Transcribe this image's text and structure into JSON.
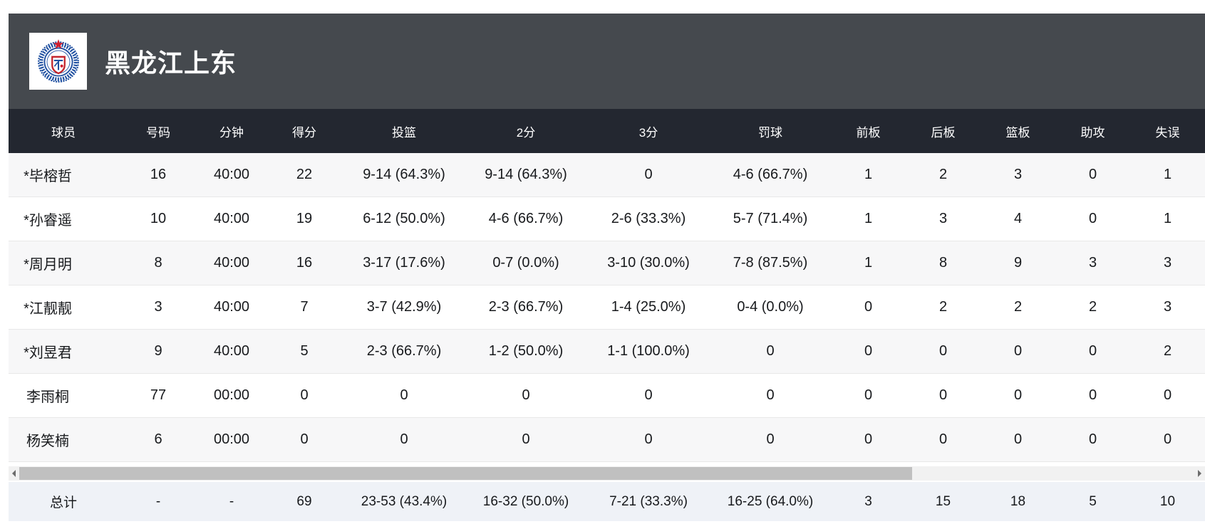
{
  "team": {
    "name": "黑龙江上东",
    "logo": "team-crest-blue-ring-red-shield",
    "colors": {
      "bar": "#45494e",
      "header_row": "#232730",
      "row_alt": "#f7f7f8",
      "total_row": "#eff2f7",
      "logo_blue": "#1e4fa0",
      "logo_red": "#cf2030"
    }
  },
  "table": {
    "columns": [
      "球员",
      "号码",
      "分钟",
      "得分",
      "投篮",
      "2分",
      "3分",
      "罚球",
      "前板",
      "后板",
      "篮板",
      "助攻",
      "失误"
    ],
    "rows": [
      [
        "*毕榕哲",
        "16",
        "40:00",
        "22",
        "9-14 (64.3%)",
        "9-14 (64.3%)",
        "0",
        "4-6 (66.7%)",
        "1",
        "2",
        "3",
        "0",
        "1"
      ],
      [
        "*孙睿遥",
        "10",
        "40:00",
        "19",
        "6-12 (50.0%)",
        "4-6 (66.7%)",
        "2-6 (33.3%)",
        "5-7 (71.4%)",
        "1",
        "3",
        "4",
        "0",
        "1"
      ],
      [
        "*周月明",
        "8",
        "40:00",
        "16",
        "3-17 (17.6%)",
        "0-7 (0.0%)",
        "3-10 (30.0%)",
        "7-8 (87.5%)",
        "1",
        "8",
        "9",
        "3",
        "3"
      ],
      [
        "*江靓靓",
        "3",
        "40:00",
        "7",
        "3-7 (42.9%)",
        "2-3 (66.7%)",
        "1-4 (25.0%)",
        "0-4 (0.0%)",
        "0",
        "2",
        "2",
        "2",
        "3"
      ],
      [
        "*刘昱君",
        "9",
        "40:00",
        "5",
        "2-3 (66.7%)",
        "1-2 (50.0%)",
        "1-1 (100.0%)",
        "0",
        "0",
        "0",
        "0",
        "0",
        "2"
      ],
      [
        "李雨桐",
        "77",
        "00:00",
        "0",
        "0",
        "0",
        "0",
        "0",
        "0",
        "0",
        "0",
        "0",
        "0"
      ],
      [
        "杨笑楠",
        "6",
        "00:00",
        "0",
        "0",
        "0",
        "0",
        "0",
        "0",
        "0",
        "0",
        "0",
        "0"
      ]
    ],
    "total": [
      "总计",
      "-",
      "-",
      "69",
      "23-53 (43.4%)",
      "16-32 (50.0%)",
      "7-21 (33.3%)",
      "16-25 (64.0%)",
      "3",
      "15",
      "18",
      "5",
      "10"
    ]
  }
}
